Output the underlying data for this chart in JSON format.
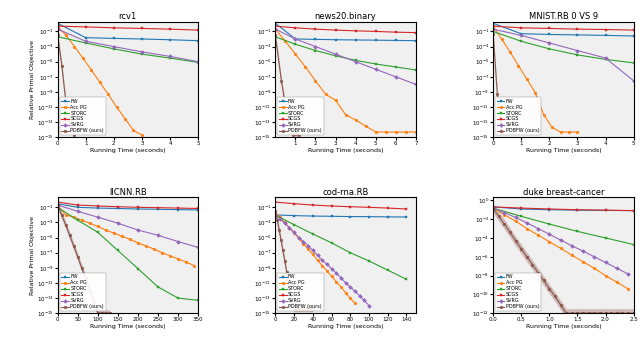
{
  "titles": [
    "rcv1",
    "news20.binary",
    "MNIST.RB 0 VS 9",
    "llCNN.RB",
    "cod-rna.RB",
    "duke breast-cancer"
  ],
  "xlabel": "Running Time (seconds)",
  "ylabel": "Relative Primal Objective",
  "colors": [
    "#1f77b4",
    "#ff7f0e",
    "#2ca02c",
    "#d62728",
    "#9467bd",
    "#8c564b"
  ],
  "markers": [
    "s",
    "o",
    "s",
    "s",
    "D",
    "o"
  ],
  "method_keys": [
    "FW",
    "Acc PG",
    "STORC",
    "SCGS",
    "SVRG",
    "PDBFW"
  ],
  "method_labels": [
    "FW",
    "Acc PG",
    "STORC",
    "SCGS",
    "SVRG",
    "PDBFW (ours)"
  ],
  "plots": {
    "rcv1": {
      "xlim": [
        0,
        5
      ],
      "xticks": [
        0,
        1,
        2,
        3,
        4,
        5
      ],
      "ylim": [
        1e-15,
        2.0
      ],
      "FW": {
        "x": [
          0,
          1,
          2,
          3,
          4,
          5
        ],
        "y": [
          1.2,
          0.015,
          0.012,
          0.01,
          0.008,
          0.006
        ]
      },
      "Acc PG": {
        "x": [
          0,
          0.3,
          0.6,
          0.9,
          1.2,
          1.5,
          1.8,
          2.1,
          2.4,
          2.7,
          3.0
        ],
        "y": [
          0.5,
          0.03,
          0.001,
          3e-05,
          8e-07,
          2e-08,
          5e-10,
          1e-11,
          3e-13,
          8e-15,
          2e-15
        ]
      },
      "STORC": {
        "x": [
          0,
          1,
          2,
          3,
          4,
          5
        ],
        "y": [
          0.02,
          0.003,
          0.0005,
          0.0001,
          3e-05,
          8e-06
        ]
      },
      "SCGS": {
        "x": [
          0,
          1,
          2,
          3,
          4,
          5
        ],
        "y": [
          0.5,
          0.4,
          0.3,
          0.25,
          0.2,
          0.15
        ]
      },
      "SVRG": {
        "x": [
          0,
          1,
          2,
          3,
          4,
          5
        ],
        "y": [
          0.2,
          0.005,
          0.001,
          0.0002,
          5e-05,
          1e-05
        ]
      },
      "PDBFW": {
        "x": [
          0,
          0.15,
          0.3,
          0.45,
          0.6
        ],
        "y": [
          0.03,
          3e-06,
          3e-11,
          3e-14,
          2e-15
        ]
      }
    },
    "news20.binary": {
      "xlim": [
        0,
        7
      ],
      "xticks": [
        1,
        2,
        3,
        4,
        5,
        6,
        7
      ],
      "ylim": [
        1e-15,
        2.0
      ],
      "FW": {
        "x": [
          0,
          1,
          2,
          3,
          4,
          5,
          6,
          7
        ],
        "y": [
          1.2,
          0.01,
          0.009,
          0.008,
          0.0075,
          0.007,
          0.0065,
          0.006
        ]
      },
      "Acc PG": {
        "x": [
          0,
          0.5,
          1,
          1.5,
          2,
          2.5,
          3,
          3.5,
          4,
          4.5,
          5,
          5.5,
          6,
          6.5,
          7
        ],
        "y": [
          0.2,
          0.005,
          0.0001,
          2e-06,
          3e-08,
          5e-10,
          8e-11,
          1e-12,
          2e-13,
          3e-14,
          5e-15,
          5e-15,
          5e-15,
          5e-15,
          5e-15
        ]
      },
      "STORC": {
        "x": [
          0,
          1,
          2,
          3,
          4,
          5,
          6,
          7
        ],
        "y": [
          0.02,
          0.002,
          0.0003,
          6e-05,
          1.5e-05,
          5e-06,
          2e-06,
          8e-07
        ]
      },
      "SCGS": {
        "x": [
          0,
          1,
          2,
          3,
          4,
          5,
          6,
          7
        ],
        "y": [
          0.5,
          0.3,
          0.2,
          0.15,
          0.12,
          0.1,
          0.08,
          0.07
        ]
      },
      "SVRG": {
        "x": [
          0,
          1,
          2,
          3,
          4,
          5,
          6,
          7
        ],
        "y": [
          0.2,
          0.01,
          0.001,
          0.0001,
          1e-05,
          1e-06,
          1e-07,
          1e-08
        ]
      },
      "PDBFW": {
        "x": [
          0,
          0.3,
          0.6,
          0.9,
          1.2
        ],
        "y": [
          0.03,
          3e-08,
          3e-13,
          2e-15,
          2e-15
        ]
      }
    },
    "MNIST.RB 0 VS 9": {
      "xlim": [
        0,
        5
      ],
      "xticks": [
        0,
        1,
        2,
        3,
        4,
        5
      ],
      "ylim": [
        1e-15,
        2.0
      ],
      "FW": {
        "x": [
          0,
          1,
          2,
          3,
          4,
          5
        ],
        "y": [
          1.2,
          0.05,
          0.04,
          0.035,
          0.03,
          0.025
        ]
      },
      "Acc PG": {
        "x": [
          0,
          0.3,
          0.6,
          0.9,
          1.2,
          1.5,
          1.8,
          2.1,
          2.4,
          2.7,
          3.0
        ],
        "y": [
          0.5,
          0.01,
          0.0002,
          3e-06,
          5e-08,
          8e-10,
          1e-12,
          2e-14,
          5e-15,
          5e-15,
          5e-15
        ]
      },
      "STORC": {
        "x": [
          0,
          1,
          2,
          3,
          4,
          5
        ],
        "y": [
          0.1,
          0.005,
          0.0005,
          8e-05,
          2e-05,
          7e-06
        ]
      },
      "SCGS": {
        "x": [
          0,
          1,
          2,
          3,
          4,
          5
        ],
        "y": [
          0.5,
          0.3,
          0.25,
          0.2,
          0.18,
          0.15
        ]
      },
      "SVRG": {
        "x": [
          0,
          1,
          2,
          3,
          4,
          5
        ],
        "y": [
          0.2,
          0.03,
          0.003,
          0.0003,
          3e-05,
          3e-08
        ]
      },
      "PDBFW": {
        "x": [
          0,
          0.15,
          0.3
        ],
        "y": [
          0.05,
          5e-10,
          5e-15
        ]
      }
    },
    "llCNN.RB": {
      "xlim": [
        0,
        350
      ],
      "xticks": [
        0,
        50,
        100,
        150,
        200,
        250,
        300,
        350
      ],
      "ylim": [
        1e-15,
        2.0
      ],
      "FW": {
        "x": [
          0,
          50,
          100,
          150,
          200,
          250,
          300,
          350
        ],
        "y": [
          0.3,
          0.1,
          0.08,
          0.07,
          0.06,
          0.055,
          0.05,
          0.045
        ]
      },
      "Acc PG": {
        "x": [
          0,
          20,
          40,
          60,
          80,
          100,
          120,
          140,
          160,
          180,
          200,
          220,
          240,
          260,
          280,
          300,
          320,
          340
        ],
        "y": [
          0.2,
          0.01,
          0.005,
          0.002,
          0.0008,
          0.0003,
          0.0001,
          4e-05,
          1.5e-05,
          6e-06,
          2e-06,
          8e-07,
          3e-07,
          1e-07,
          4e-08,
          1.5e-08,
          6e-09,
          2e-09
        ]
      },
      "STORC": {
        "x": [
          0,
          50,
          100,
          150,
          200,
          250,
          300,
          350
        ],
        "y": [
          0.1,
          0.002,
          5e-05,
          2e-07,
          8e-10,
          3e-12,
          1e-13,
          5e-14
        ]
      },
      "SCGS": {
        "x": [
          0,
          50,
          100,
          150,
          200,
          250,
          300,
          350
        ],
        "y": [
          0.5,
          0.2,
          0.15,
          0.12,
          0.1,
          0.09,
          0.08,
          0.07
        ]
      },
      "SVRG": {
        "x": [
          0,
          50,
          100,
          150,
          200,
          250,
          300,
          350
        ],
        "y": [
          0.2,
          0.03,
          0.005,
          0.0008,
          0.0001,
          2e-05,
          3e-06,
          5e-07
        ]
      },
      "PDBFW": {
        "x": [
          0,
          10,
          20,
          30,
          40,
          50,
          60,
          70,
          80,
          90,
          100,
          110,
          120,
          130
        ],
        "y": [
          0.2,
          0.01,
          0.0005,
          2e-05,
          8e-07,
          3e-08,
          1e-09,
          4e-11,
          1e-12,
          4e-14,
          1e-15,
          1e-15,
          1e-15,
          1e-15
        ]
      }
    },
    "cod-rna.RB": {
      "xlim": [
        0,
        150
      ],
      "xticks": [
        0,
        20,
        40,
        60,
        80,
        100,
        120,
        140
      ],
      "ylim": [
        1e-15,
        2.0
      ],
      "FW": {
        "x": [
          0,
          20,
          40,
          60,
          80,
          100,
          120,
          140
        ],
        "y": [
          0.01,
          0.008,
          0.007,
          0.0065,
          0.006,
          0.0058,
          0.0055,
          0.0052
        ]
      },
      "Acc PG": {
        "x": [
          0,
          5,
          10,
          15,
          20,
          25,
          30,
          35,
          40,
          45,
          50,
          55,
          60,
          65,
          70,
          75,
          80,
          85
        ],
        "y": [
          0.02,
          0.005,
          0.001,
          0.0002,
          4e-05,
          8e-06,
          1.5e-06,
          3e-07,
          6e-08,
          1e-08,
          2e-09,
          4e-10,
          8e-11,
          1.5e-11,
          3e-12,
          5e-13,
          1e-13,
          2e-14
        ]
      },
      "STORC": {
        "x": [
          0,
          20,
          40,
          60,
          80,
          100,
          120,
          140
        ],
        "y": [
          0.01,
          0.0005,
          3e-05,
          2e-06,
          1e-07,
          8e-09,
          5e-10,
          3e-11
        ]
      },
      "SCGS": {
        "x": [
          0,
          20,
          40,
          60,
          80,
          100,
          120,
          140
        ],
        "y": [
          0.5,
          0.3,
          0.2,
          0.15,
          0.12,
          0.1,
          0.08,
          0.06
        ]
      },
      "SVRG": {
        "x": [
          0,
          5,
          10,
          15,
          20,
          25,
          30,
          35,
          40,
          45,
          50,
          55,
          60,
          65,
          70,
          75,
          80,
          85,
          90,
          95,
          100
        ],
        "y": [
          0.01,
          0.003,
          0.0008,
          0.0002,
          5e-05,
          1e-05,
          3e-06,
          8e-07,
          2e-07,
          5e-08,
          1e-08,
          3e-09,
          8e-10,
          2e-10,
          5e-11,
          1e-11,
          3e-12,
          8e-13,
          2e-13,
          5e-14,
          1e-14
        ]
      },
      "PDBFW": {
        "x": [
          0,
          2,
          4,
          6,
          8,
          10,
          12,
          14,
          16,
          18,
          20,
          22,
          24,
          26,
          28,
          30,
          32,
          34,
          36,
          38,
          40
        ],
        "y": [
          0.03,
          0.002,
          0.0001,
          5e-06,
          2e-07,
          8e-09,
          3e-10,
          1e-11,
          4e-13,
          1e-14,
          5e-15,
          5e-15,
          5e-15,
          5e-15,
          5e-15,
          5e-15,
          5e-15,
          5e-15,
          5e-15,
          5e-15,
          5e-15
        ]
      }
    },
    "duke breast-cancer": {
      "xlim": [
        0,
        2.5
      ],
      "xticks": [
        0.0,
        0.5,
        1.0,
        1.5,
        2.0,
        2.5
      ],
      "ylim": [
        1e-12,
        2.0
      ],
      "FW": {
        "x": [
          0,
          0.5,
          1.0,
          1.5,
          2.0,
          2.5
        ],
        "y": [
          0.2,
          0.12,
          0.1,
          0.09,
          0.085,
          0.08
        ]
      },
      "Acc PG": {
        "x": [
          0,
          0.2,
          0.4,
          0.6,
          0.8,
          1.0,
          1.2,
          1.4,
          1.6,
          1.8,
          2.0,
          2.2,
          2.4
        ],
        "y": [
          0.15,
          0.03,
          0.006,
          0.001,
          0.0002,
          4e-05,
          8e-06,
          1.5e-06,
          3e-07,
          6e-08,
          1e-08,
          2e-09,
          4e-10
        ]
      },
      "STORC": {
        "x": [
          0,
          0.5,
          1.0,
          1.5,
          2.0,
          2.5
        ],
        "y": [
          0.15,
          0.02,
          0.003,
          0.0005,
          0.0001,
          2e-05
        ]
      },
      "SCGS": {
        "x": [
          0,
          0.5,
          1.0,
          1.5,
          2.0,
          2.5
        ],
        "y": [
          0.2,
          0.15,
          0.12,
          0.1,
          0.09,
          0.08
        ]
      },
      "SVRG": {
        "x": [
          0,
          0.2,
          0.4,
          0.6,
          0.8,
          1.0,
          1.2,
          1.4,
          1.6,
          1.8,
          2.0,
          2.2,
          2.4
        ],
        "y": [
          0.15,
          0.05,
          0.015,
          0.004,
          0.001,
          0.00025,
          6e-05,
          1.5e-05,
          4e-06,
          1e-06,
          2.5e-07,
          6e-08,
          1.5e-08
        ]
      },
      "PDBFW": {
        "x": [
          0,
          0.1,
          0.2,
          0.3,
          0.4,
          0.5,
          0.6,
          0.7,
          0.8,
          0.9,
          1.0,
          1.1,
          1.2,
          1.3,
          1.4,
          1.5,
          1.6,
          1.7,
          1.8,
          1.9,
          2.0,
          2.1,
          2.2,
          2.3,
          2.4,
          2.5
        ],
        "y": [
          0.15,
          0.02,
          0.003,
          0.0004,
          5e-05,
          7e-06,
          1e-06,
          1.5e-07,
          2e-08,
          3e-09,
          4e-10,
          6e-11,
          8e-12,
          1e-12,
          1e-12,
          1e-12,
          1e-12,
          1e-12,
          1e-12,
          1e-12,
          1e-12,
          1e-12,
          1e-12,
          1e-12,
          1e-12,
          1e-12
        ]
      }
    }
  }
}
